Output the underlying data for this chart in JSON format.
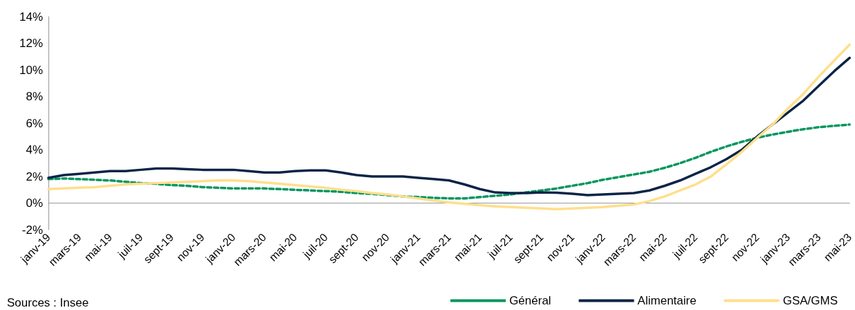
{
  "chart_data": {
    "type": "line",
    "categories": [
      "janv-19",
      null,
      "mars-19",
      null,
      "mai-19",
      null,
      "juil-19",
      null,
      "sept-19",
      null,
      "nov-19",
      null,
      "janv-20",
      null,
      "mars-20",
      null,
      "mai-20",
      null,
      "juil-20",
      null,
      "sept-20",
      null,
      "nov-20",
      null,
      "janv-21",
      null,
      "mars-21",
      null,
      "mai-21",
      null,
      "juil-21",
      null,
      "sept-21",
      null,
      "nov-21",
      null,
      "janv-22",
      null,
      "mars-22",
      null,
      "mai-22",
      null,
      "juil-22",
      null,
      "sept-22",
      null,
      "nov-22",
      null,
      "janv-23",
      null,
      "mars-23",
      null,
      "mai-23"
    ],
    "series": [
      {
        "name": "Général",
        "color": "#00965e",
        "line_style": "dashed",
        "values": [
          1.8,
          1.85,
          1.8,
          1.75,
          1.7,
          1.6,
          1.5,
          1.45,
          1.35,
          1.3,
          1.2,
          1.15,
          1.1,
          1.1,
          1.1,
          1.05,
          1.0,
          0.95,
          0.9,
          0.85,
          0.75,
          0.7,
          0.6,
          0.5,
          0.45,
          0.4,
          0.35,
          0.35,
          0.45,
          0.55,
          0.65,
          0.8,
          0.95,
          1.1,
          1.3,
          1.5,
          1.75,
          1.95,
          2.15,
          2.35,
          2.65,
          3.0,
          3.4,
          3.85,
          4.25,
          4.6,
          4.9,
          5.15,
          5.35,
          5.55,
          5.7,
          5.8,
          5.9
        ]
      },
      {
        "name": "Alimentaire",
        "color": "#0b2447",
        "line_style": "solid",
        "values": [
          1.9,
          2.1,
          2.2,
          2.3,
          2.4,
          2.4,
          2.5,
          2.6,
          2.6,
          2.55,
          2.5,
          2.5,
          2.5,
          2.4,
          2.3,
          2.3,
          2.4,
          2.45,
          2.45,
          2.3,
          2.1,
          2.0,
          2.0,
          2.0,
          1.9,
          1.8,
          1.7,
          1.4,
          1.05,
          0.8,
          0.75,
          0.75,
          0.8,
          0.78,
          0.7,
          0.6,
          0.65,
          0.7,
          0.75,
          0.95,
          1.3,
          1.7,
          2.2,
          2.7,
          3.3,
          4.0,
          5.0,
          5.9,
          6.8,
          7.7,
          8.8,
          9.9,
          10.9
        ]
      },
      {
        "name": "GSA/GMS",
        "color": "#ffdf8c",
        "line_style": "solid",
        "values": [
          1.05,
          1.1,
          1.15,
          1.2,
          1.3,
          1.4,
          1.45,
          1.5,
          1.55,
          1.6,
          1.65,
          1.7,
          1.7,
          1.65,
          1.55,
          1.45,
          1.35,
          1.25,
          1.15,
          1.0,
          0.9,
          0.75,
          0.65,
          0.5,
          0.35,
          0.2,
          0.05,
          -0.05,
          -0.15,
          -0.25,
          -0.3,
          -0.35,
          -0.4,
          -0.45,
          -0.4,
          -0.35,
          -0.3,
          -0.2,
          -0.1,
          0.15,
          0.5,
          0.95,
          1.4,
          2.0,
          2.9,
          3.85,
          4.9,
          5.9,
          7.1,
          8.2,
          9.5,
          10.7,
          11.9
        ]
      }
    ],
    "ylim": [
      -2,
      14
    ],
    "yticks": [
      {
        "value": -2,
        "label": "-2%"
      },
      {
        "value": 0,
        "label": "0%"
      },
      {
        "value": 2,
        "label": "2%"
      },
      {
        "value": 4,
        "label": "4%"
      },
      {
        "value": 6,
        "label": "6%"
      },
      {
        "value": 8,
        "label": "8%"
      },
      {
        "value": 10,
        "label": "10%"
      },
      {
        "value": 12,
        "label": "12%"
      },
      {
        "value": 14,
        "label": "14%"
      }
    ],
    "grid": false,
    "legend": "bottom right",
    "marker": "none",
    "annotations": [
      "Sources : Insee"
    ]
  }
}
